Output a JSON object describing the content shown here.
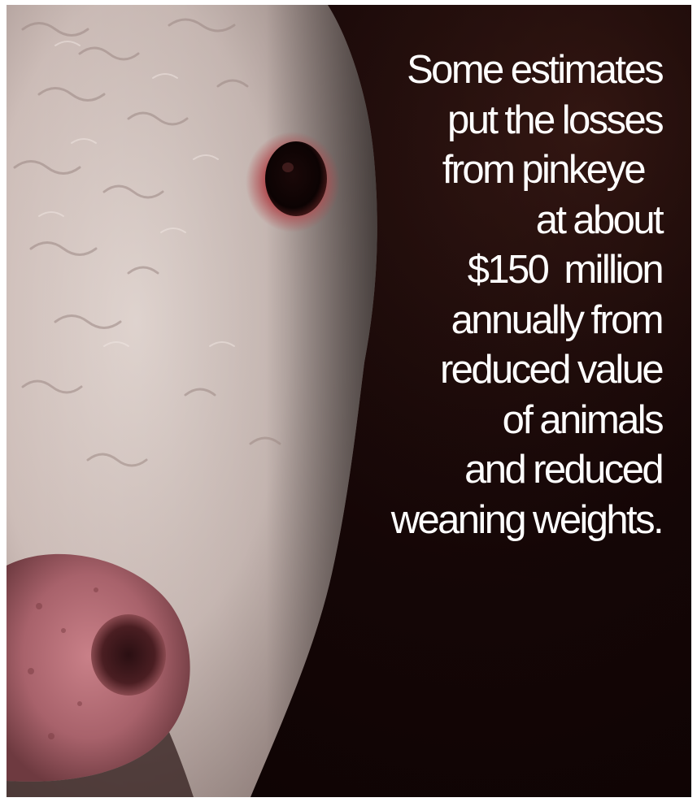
{
  "caption": {
    "lines": [
      "Some estimates",
      "put the losses",
      "from pinkeye",
      "at about",
      "$150  million",
      "annually from",
      "reduced value",
      "of animals",
      "and reduced",
      "weaning weights."
    ]
  },
  "photo": {
    "subject": "close-up of a white-faced cow"
  },
  "colors": {
    "background": "#120505",
    "caption_text": "#ffffff",
    "hide": "#d9cbc6",
    "nose": "#b8727a"
  }
}
